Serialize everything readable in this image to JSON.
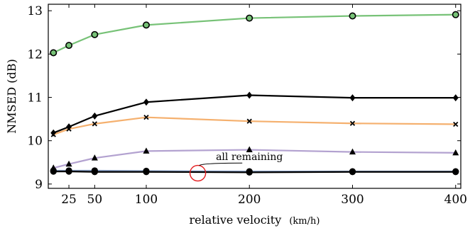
{
  "chart_data": {
    "type": "line",
    "title": "",
    "xlabel": "relative velocity",
    "xlabel_unit": "(km/h)",
    "ylabel": "NMSED (dB)",
    "x": [
      10,
      25,
      50,
      100,
      200,
      300,
      400
    ],
    "x_ticks": [
      25,
      50,
      100,
      200,
      300,
      400
    ],
    "y_ticks": [
      9,
      10,
      11,
      12,
      13
    ],
    "xlim": [
      5,
      405
    ],
    "ylim": [
      8.9,
      13.15
    ],
    "grid": false,
    "legend": "none",
    "series": [
      {
        "color": "#77c277",
        "marker": "circle-filled-green",
        "values": [
          12.03,
          12.2,
          12.45,
          12.67,
          12.83,
          12.88,
          12.91
        ]
      },
      {
        "color": "#000000",
        "marker": "diamond",
        "values": [
          10.18,
          10.32,
          10.57,
          10.89,
          11.05,
          10.99,
          10.99
        ]
      },
      {
        "color": "#f5b06e",
        "marker": "cross",
        "values": [
          10.14,
          10.27,
          10.39,
          10.54,
          10.45,
          10.4,
          10.38
        ]
      },
      {
        "color": "#b3a2d0",
        "marker": "triangle",
        "values": [
          9.37,
          9.46,
          9.6,
          9.76,
          9.79,
          9.74,
          9.72
        ]
      },
      {
        "color": "#8aa2c8",
        "marker": "circle-black",
        "values": [
          9.31,
          9.31,
          9.31,
          9.3,
          9.29,
          9.29,
          9.29
        ]
      },
      {
        "color": "#000000",
        "marker": "circle-black",
        "values": [
          9.29,
          9.29,
          9.28,
          9.28,
          9.27,
          9.28,
          9.28
        ]
      }
    ],
    "annotations": [
      {
        "text": "all remaining",
        "x": 200,
        "y": 9.55,
        "target": {
          "x": 150,
          "y": 9.25
        },
        "circle_color": "#e41a1c"
      }
    ]
  }
}
